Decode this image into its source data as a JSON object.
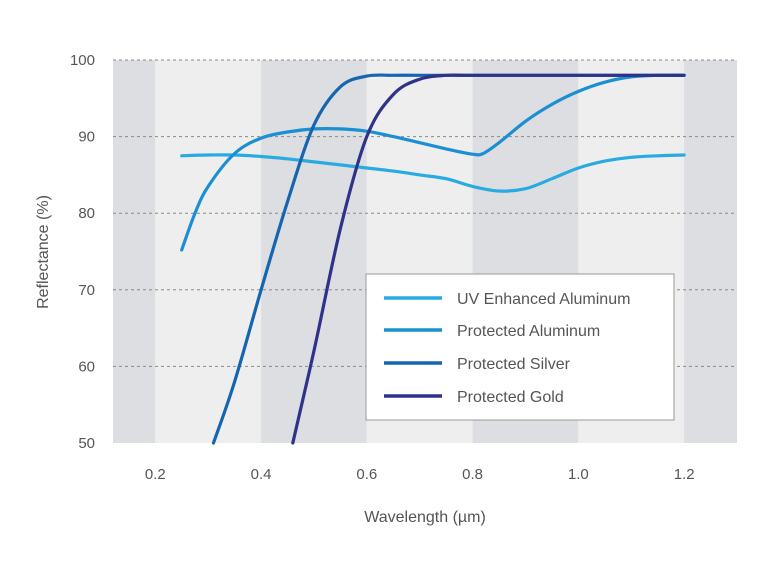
{
  "chart_data": {
    "type": "line",
    "title": "",
    "xlabel": "Wavelength (µm)",
    "ylabel": "Reflectance (%)",
    "xlim": [
      0.12,
      1.3
    ],
    "ylim": [
      50,
      100
    ],
    "xticks": [
      0.2,
      0.4,
      0.6,
      0.8,
      1.0,
      1.2
    ],
    "xtick_labels": [
      "0.2",
      "0.4",
      "0.6",
      "0.8",
      "1.0",
      "1.2"
    ],
    "yticks": [
      50,
      60,
      70,
      80,
      90,
      100
    ],
    "ytick_labels": [
      "50",
      "60",
      "70",
      "80",
      "90",
      "100"
    ],
    "grid": "dashed horizontal",
    "legend_position": "bottom-right",
    "band_colors": [
      "#dcdee2",
      "#eeeeef"
    ],
    "series": [
      {
        "name": "UV Enhanced Aluminum",
        "color": "#29abe2",
        "x": [
          0.25,
          0.3,
          0.35,
          0.4,
          0.45,
          0.5,
          0.55,
          0.6,
          0.65,
          0.7,
          0.75,
          0.8,
          0.85,
          0.9,
          0.95,
          1.0,
          1.05,
          1.1,
          1.15,
          1.2
        ],
        "y": [
          87.5,
          87.6,
          87.6,
          87.4,
          87.1,
          86.7,
          86.3,
          85.9,
          85.5,
          85.0,
          84.5,
          83.5,
          82.9,
          83.2,
          84.5,
          85.9,
          86.8,
          87.3,
          87.5,
          87.6
        ]
      },
      {
        "name": "Protected Aluminum",
        "color": "#1b8fd2",
        "x": [
          0.25,
          0.275,
          0.3,
          0.35,
          0.4,
          0.45,
          0.5,
          0.55,
          0.6,
          0.65,
          0.7,
          0.75,
          0.8,
          0.82,
          0.85,
          0.9,
          0.95,
          1.0,
          1.05,
          1.1,
          1.15,
          1.2
        ],
        "y": [
          75.2,
          80.0,
          83.5,
          87.8,
          89.8,
          90.6,
          91.0,
          91.0,
          90.7,
          90.0,
          89.2,
          88.4,
          87.7,
          87.8,
          89.2,
          92.0,
          94.2,
          95.9,
          97.1,
          97.8,
          98.0,
          98.0
        ]
      },
      {
        "name": "Protected Silver",
        "color": "#1565b0",
        "x": [
          0.31,
          0.35,
          0.4,
          0.45,
          0.5,
          0.55,
          0.6,
          0.65,
          0.7,
          0.8,
          1.0,
          1.2
        ],
        "y": [
          50.0,
          58.0,
          70.0,
          81.5,
          91.5,
          96.5,
          97.9,
          98.0,
          98.0,
          98.0,
          98.0,
          98.0
        ]
      },
      {
        "name": "Protected Gold",
        "color": "#2f3289",
        "x": [
          0.46,
          0.5,
          0.55,
          0.6,
          0.65,
          0.7,
          0.75,
          0.8,
          1.0,
          1.2
        ],
        "y": [
          50.0,
          62.0,
          78.0,
          90.0,
          95.5,
          97.5,
          98.0,
          98.0,
          98.0,
          98.0
        ]
      }
    ]
  }
}
